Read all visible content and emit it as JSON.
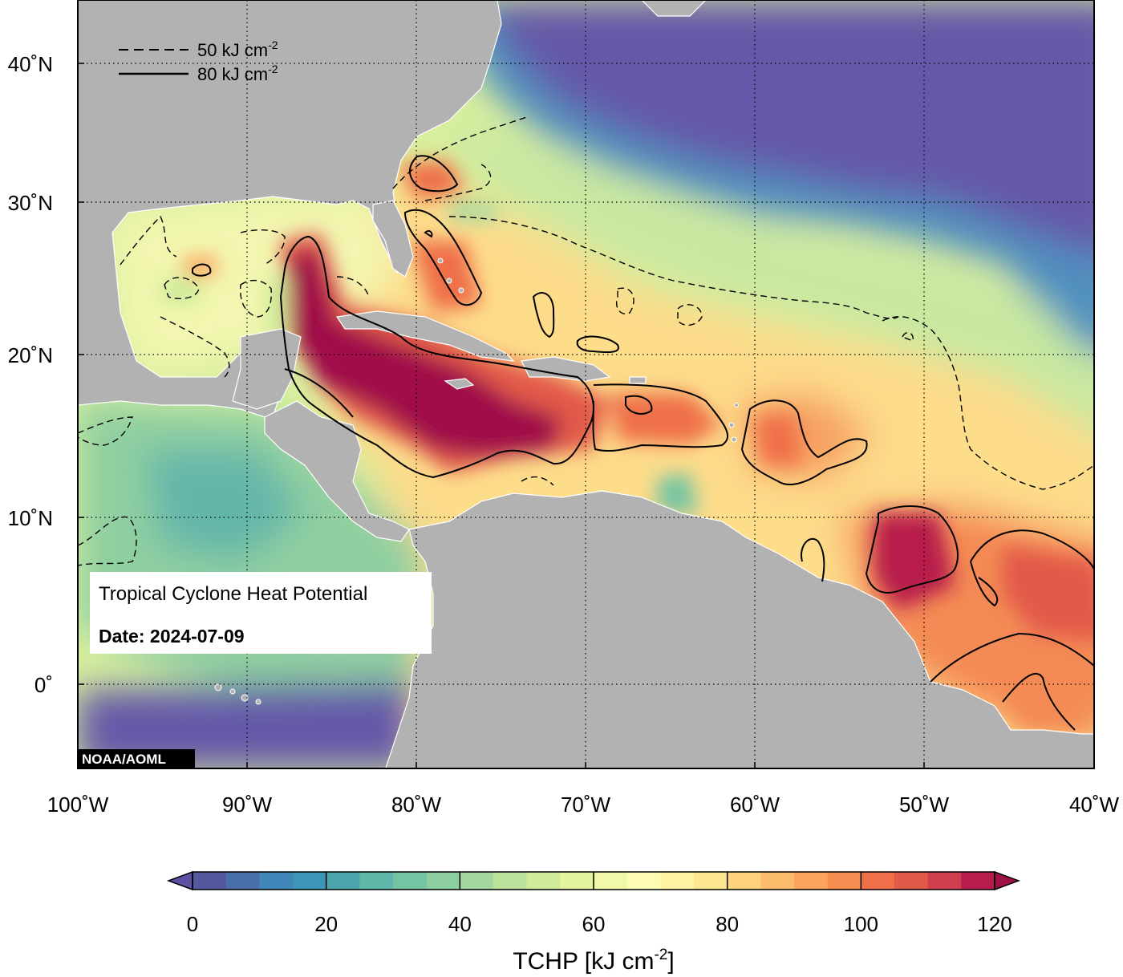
{
  "map": {
    "credit": "NOAA/AOML",
    "info_box": {
      "title": "Tropical Cyclone Heat Potential",
      "date": "Date: 2024-07-09"
    },
    "contour_legend": [
      {
        "style": "dashed",
        "value": "50",
        "unit": "kJ cm",
        "exponent": "-2"
      },
      {
        "style": "solid",
        "value": "80",
        "unit": "kJ cm",
        "exponent": "-2"
      }
    ],
    "lon_labels": [
      "100˚W",
      "90˚W",
      "80˚W",
      "70˚W",
      "60˚W",
      "50˚W",
      "40˚W"
    ],
    "lat_labels": [
      "40˚N",
      "30˚N",
      "20˚N",
      "10˚N",
      "0˚"
    ],
    "colors": {
      "land": "#b2b2b2",
      "coastline": "#ffffff",
      "ocean_cold": "#6558a8",
      "ocean_hot": "#a50f4a"
    }
  },
  "colorbar": {
    "title": "TCHP [kJ cm",
    "title_exponent": "-2",
    "title_close": "]",
    "tick_labels": [
      "0",
      "20",
      "40",
      "60",
      "80",
      "100",
      "120"
    ],
    "min": 0,
    "max": 120,
    "step": 5,
    "colors": [
      "#5e4fa2",
      "#54589f",
      "#4a6ea7",
      "#3f87b9",
      "#3d96b8",
      "#4ba6b0",
      "#5fb8a9",
      "#74c4a3",
      "#8cce9f",
      "#a5d89f",
      "#bbe39b",
      "#cfec9b",
      "#e3f49e",
      "#f1f9a8",
      "#fcfcb4",
      "#fef3a3",
      "#fee590",
      "#fdd27d",
      "#fdbc6b",
      "#fca35d",
      "#f88d52",
      "#ef6f48",
      "#e25a4a",
      "#d13f4e",
      "#b71c4c",
      "#a01049"
    ]
  }
}
